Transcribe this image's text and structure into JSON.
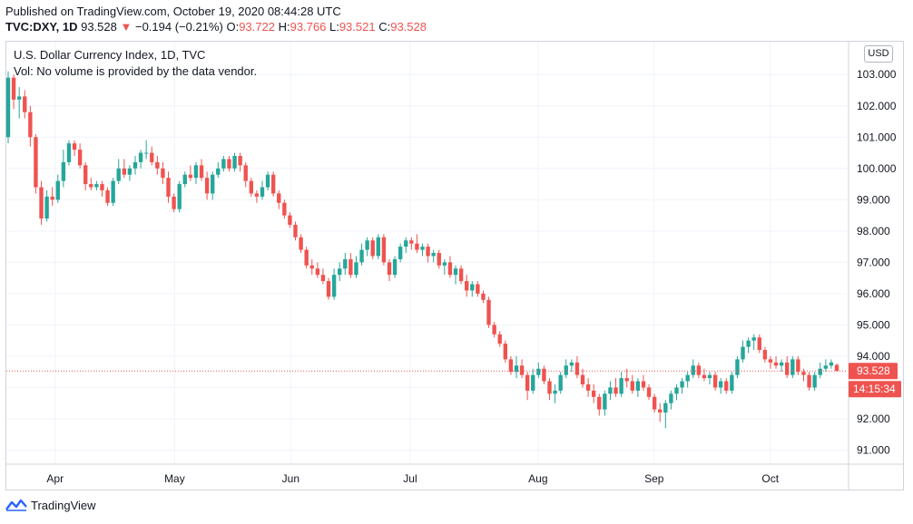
{
  "published": "Published on TradingView.com, October 19, 2020 08:44:28 UTC",
  "quote": {
    "symbol": "TVC:DXY, 1D",
    "last": "93.528",
    "arrow": "▼",
    "change": "−0.194 (−0.21%)",
    "o_label": "O:",
    "o": "93.722",
    "h_label": "H:",
    "h": "93.766",
    "l_label": "L:",
    "l": "93.521",
    "c_label": "C:",
    "c": "93.528"
  },
  "legend": {
    "title": "U.S. Dollar Currency Index, 1D, TVC",
    "vol": "Vol: No volume is provided by the data vendor."
  },
  "currency_button": "USD",
  "footer": {
    "brand": "TradingView",
    "logo_icon": "tradingview-logo-icon"
  },
  "colors": {
    "up": "#26a69a",
    "down": "#ef5350",
    "grid": "#f0f3fa",
    "text": "#131722"
  },
  "chart_data": {
    "type": "candlestick",
    "y_ticks": [
      "91.000",
      "92.000",
      "93.000",
      "94.000",
      "95.000",
      "96.000",
      "97.000",
      "98.000",
      "99.000",
      "100.000",
      "101.000",
      "102.000",
      "103.000"
    ],
    "ylim": [
      90.55,
      104.05
    ],
    "x_ticks": [
      "Apr",
      "May",
      "Jun",
      "Jul",
      "Aug",
      "Sep",
      "Oct"
    ],
    "last_price_label": "93.528",
    "countdown_label": "14:15:34",
    "last_price": 93.528,
    "candles": [
      {
        "o": 101.0,
        "h": 103.1,
        "l": 100.8,
        "c": 102.9
      },
      {
        "o": 102.9,
        "h": 103.0,
        "l": 101.9,
        "c": 102.2
      },
      {
        "o": 102.2,
        "h": 102.6,
        "l": 101.6,
        "c": 102.3
      },
      {
        "o": 102.3,
        "h": 102.5,
        "l": 101.6,
        "c": 101.8
      },
      {
        "o": 101.8,
        "h": 102.0,
        "l": 100.7,
        "c": 101.0
      },
      {
        "o": 101.0,
        "h": 101.1,
        "l": 99.2,
        "c": 99.4
      },
      {
        "o": 99.4,
        "h": 99.6,
        "l": 98.2,
        "c": 98.4
      },
      {
        "o": 98.4,
        "h": 99.3,
        "l": 98.3,
        "c": 99.1
      },
      {
        "o": 99.1,
        "h": 99.4,
        "l": 98.8,
        "c": 99.0
      },
      {
        "o": 99.0,
        "h": 99.8,
        "l": 98.9,
        "c": 99.6
      },
      {
        "o": 99.6,
        "h": 100.6,
        "l": 99.4,
        "c": 100.2
      },
      {
        "o": 100.2,
        "h": 100.9,
        "l": 100.1,
        "c": 100.8
      },
      {
        "o": 100.8,
        "h": 100.9,
        "l": 100.4,
        "c": 100.6
      },
      {
        "o": 100.6,
        "h": 100.8,
        "l": 100.0,
        "c": 100.1
      },
      {
        "o": 100.1,
        "h": 100.2,
        "l": 99.3,
        "c": 99.5
      },
      {
        "o": 99.5,
        "h": 99.7,
        "l": 99.3,
        "c": 99.4
      },
      {
        "o": 99.4,
        "h": 99.6,
        "l": 99.3,
        "c": 99.5
      },
      {
        "o": 99.5,
        "h": 99.6,
        "l": 99.1,
        "c": 99.3
      },
      {
        "o": 99.3,
        "h": 99.4,
        "l": 98.8,
        "c": 98.9
      },
      {
        "o": 98.9,
        "h": 99.7,
        "l": 98.8,
        "c": 99.6
      },
      {
        "o": 99.6,
        "h": 100.3,
        "l": 99.5,
        "c": 100.0
      },
      {
        "o": 100.0,
        "h": 100.3,
        "l": 99.7,
        "c": 99.8
      },
      {
        "o": 99.8,
        "h": 100.1,
        "l": 99.6,
        "c": 100.0
      },
      {
        "o": 100.0,
        "h": 100.4,
        "l": 99.8,
        "c": 100.2
      },
      {
        "o": 100.2,
        "h": 100.6,
        "l": 100.0,
        "c": 100.5
      },
      {
        "o": 100.5,
        "h": 100.9,
        "l": 100.3,
        "c": 100.5
      },
      {
        "o": 100.5,
        "h": 100.7,
        "l": 100.1,
        "c": 100.2
      },
      {
        "o": 100.2,
        "h": 100.4,
        "l": 99.8,
        "c": 100.0
      },
      {
        "o": 100.0,
        "h": 100.2,
        "l": 99.5,
        "c": 99.7
      },
      {
        "o": 99.7,
        "h": 99.9,
        "l": 98.9,
        "c": 99.1
      },
      {
        "o": 99.1,
        "h": 99.2,
        "l": 98.6,
        "c": 98.7
      },
      {
        "o": 98.7,
        "h": 99.6,
        "l": 98.6,
        "c": 99.5
      },
      {
        "o": 99.5,
        "h": 99.9,
        "l": 99.4,
        "c": 99.8
      },
      {
        "o": 99.8,
        "h": 100.1,
        "l": 99.6,
        "c": 99.7
      },
      {
        "o": 99.7,
        "h": 100.2,
        "l": 99.5,
        "c": 100.1
      },
      {
        "o": 100.1,
        "h": 100.3,
        "l": 99.6,
        "c": 99.7
      },
      {
        "o": 99.7,
        "h": 99.9,
        "l": 99.0,
        "c": 99.2
      },
      {
        "o": 99.2,
        "h": 99.9,
        "l": 99.0,
        "c": 99.8
      },
      {
        "o": 99.8,
        "h": 100.2,
        "l": 99.7,
        "c": 100.0
      },
      {
        "o": 100.0,
        "h": 100.4,
        "l": 99.9,
        "c": 100.3
      },
      {
        "o": 100.3,
        "h": 100.4,
        "l": 99.9,
        "c": 100.0
      },
      {
        "o": 100.0,
        "h": 100.5,
        "l": 99.9,
        "c": 100.4
      },
      {
        "o": 100.4,
        "h": 100.5,
        "l": 99.9,
        "c": 100.1
      },
      {
        "o": 100.1,
        "h": 100.2,
        "l": 99.4,
        "c": 99.6
      },
      {
        "o": 99.6,
        "h": 99.7,
        "l": 99.1,
        "c": 99.2
      },
      {
        "o": 99.2,
        "h": 99.3,
        "l": 98.9,
        "c": 99.1
      },
      {
        "o": 99.1,
        "h": 99.6,
        "l": 99.0,
        "c": 99.4
      },
      {
        "o": 99.4,
        "h": 99.9,
        "l": 99.3,
        "c": 99.8
      },
      {
        "o": 99.8,
        "h": 99.9,
        "l": 99.1,
        "c": 99.2
      },
      {
        "o": 99.2,
        "h": 99.3,
        "l": 98.7,
        "c": 98.9
      },
      {
        "o": 98.9,
        "h": 99.0,
        "l": 98.4,
        "c": 98.5
      },
      {
        "o": 98.5,
        "h": 98.6,
        "l": 98.1,
        "c": 98.2
      },
      {
        "o": 98.2,
        "h": 98.3,
        "l": 97.7,
        "c": 97.8
      },
      {
        "o": 97.8,
        "h": 97.9,
        "l": 97.3,
        "c": 97.4
      },
      {
        "o": 97.4,
        "h": 97.5,
        "l": 96.8,
        "c": 96.9
      },
      {
        "o": 96.9,
        "h": 97.1,
        "l": 96.6,
        "c": 96.8
      },
      {
        "o": 96.8,
        "h": 97.0,
        "l": 96.5,
        "c": 96.6
      },
      {
        "o": 96.6,
        "h": 96.8,
        "l": 96.3,
        "c": 96.4
      },
      {
        "o": 96.4,
        "h": 96.5,
        "l": 95.8,
        "c": 95.9
      },
      {
        "o": 95.9,
        "h": 96.8,
        "l": 95.8,
        "c": 96.6
      },
      {
        "o": 96.6,
        "h": 97.0,
        "l": 96.4,
        "c": 96.8
      },
      {
        "o": 96.8,
        "h": 97.3,
        "l": 96.6,
        "c": 97.1
      },
      {
        "o": 97.1,
        "h": 97.3,
        "l": 96.5,
        "c": 96.6
      },
      {
        "o": 96.6,
        "h": 97.2,
        "l": 96.5,
        "c": 97.0
      },
      {
        "o": 97.0,
        "h": 97.6,
        "l": 96.9,
        "c": 97.4
      },
      {
        "o": 97.4,
        "h": 97.8,
        "l": 97.2,
        "c": 97.7
      },
      {
        "o": 97.7,
        "h": 97.8,
        "l": 97.1,
        "c": 97.2
      },
      {
        "o": 97.2,
        "h": 97.9,
        "l": 97.1,
        "c": 97.8
      },
      {
        "o": 97.8,
        "h": 97.9,
        "l": 96.9,
        "c": 97.0
      },
      {
        "o": 97.0,
        "h": 97.1,
        "l": 96.4,
        "c": 96.6
      },
      {
        "o": 96.6,
        "h": 97.2,
        "l": 96.5,
        "c": 97.1
      },
      {
        "o": 97.1,
        "h": 97.6,
        "l": 97.0,
        "c": 97.5
      },
      {
        "o": 97.5,
        "h": 97.8,
        "l": 97.3,
        "c": 97.7
      },
      {
        "o": 97.7,
        "h": 97.8,
        "l": 97.4,
        "c": 97.6
      },
      {
        "o": 97.6,
        "h": 97.9,
        "l": 97.3,
        "c": 97.4
      },
      {
        "o": 97.4,
        "h": 97.6,
        "l": 97.2,
        "c": 97.5
      },
      {
        "o": 97.5,
        "h": 97.6,
        "l": 97.0,
        "c": 97.2
      },
      {
        "o": 97.2,
        "h": 97.4,
        "l": 97.0,
        "c": 97.3
      },
      {
        "o": 97.3,
        "h": 97.4,
        "l": 96.8,
        "c": 96.9
      },
      {
        "o": 96.9,
        "h": 97.1,
        "l": 96.6,
        "c": 97.0
      },
      {
        "o": 97.0,
        "h": 97.2,
        "l": 96.5,
        "c": 96.6
      },
      {
        "o": 96.6,
        "h": 96.9,
        "l": 96.3,
        "c": 96.8
      },
      {
        "o": 96.8,
        "h": 96.9,
        "l": 96.3,
        "c": 96.4
      },
      {
        "o": 96.4,
        "h": 96.6,
        "l": 95.9,
        "c": 96.1
      },
      {
        "o": 96.1,
        "h": 96.4,
        "l": 95.9,
        "c": 96.3
      },
      {
        "o": 96.3,
        "h": 96.4,
        "l": 95.9,
        "c": 96.0
      },
      {
        "o": 96.0,
        "h": 96.1,
        "l": 95.7,
        "c": 95.8
      },
      {
        "o": 95.8,
        "h": 95.9,
        "l": 94.9,
        "c": 95.0
      },
      {
        "o": 95.0,
        "h": 95.1,
        "l": 94.6,
        "c": 94.7
      },
      {
        "o": 94.7,
        "h": 94.8,
        "l": 94.3,
        "c": 94.4
      },
      {
        "o": 94.4,
        "h": 94.5,
        "l": 93.8,
        "c": 93.9
      },
      {
        "o": 93.9,
        "h": 94.0,
        "l": 93.4,
        "c": 93.5
      },
      {
        "o": 93.5,
        "h": 94.0,
        "l": 93.3,
        "c": 93.7
      },
      {
        "o": 93.7,
        "h": 93.9,
        "l": 93.3,
        "c": 93.4
      },
      {
        "o": 93.4,
        "h": 93.5,
        "l": 92.6,
        "c": 92.9
      },
      {
        "o": 92.9,
        "h": 93.6,
        "l": 92.8,
        "c": 93.4
      },
      {
        "o": 93.4,
        "h": 93.8,
        "l": 93.3,
        "c": 93.6
      },
      {
        "o": 93.6,
        "h": 93.7,
        "l": 93.1,
        "c": 93.2
      },
      {
        "o": 93.2,
        "h": 93.3,
        "l": 92.6,
        "c": 92.8
      },
      {
        "o": 92.8,
        "h": 93.1,
        "l": 92.5,
        "c": 92.9
      },
      {
        "o": 92.9,
        "h": 93.5,
        "l": 92.8,
        "c": 93.4
      },
      {
        "o": 93.4,
        "h": 93.9,
        "l": 93.3,
        "c": 93.7
      },
      {
        "o": 93.7,
        "h": 93.9,
        "l": 93.5,
        "c": 93.8
      },
      {
        "o": 93.8,
        "h": 94.0,
        "l": 93.3,
        "c": 93.4
      },
      {
        "o": 93.4,
        "h": 93.6,
        "l": 93.0,
        "c": 93.1
      },
      {
        "o": 93.1,
        "h": 93.3,
        "l": 92.7,
        "c": 92.9
      },
      {
        "o": 92.9,
        "h": 93.1,
        "l": 92.5,
        "c": 92.7
      },
      {
        "o": 92.7,
        "h": 92.8,
        "l": 92.1,
        "c": 92.3
      },
      {
        "o": 92.3,
        "h": 92.9,
        "l": 92.1,
        "c": 92.8
      },
      {
        "o": 92.8,
        "h": 93.2,
        "l": 92.6,
        "c": 93.0
      },
      {
        "o": 93.0,
        "h": 93.3,
        "l": 92.7,
        "c": 92.8
      },
      {
        "o": 92.8,
        "h": 93.5,
        "l": 92.7,
        "c": 93.3
      },
      {
        "o": 93.3,
        "h": 93.6,
        "l": 93.0,
        "c": 93.2
      },
      {
        "o": 93.2,
        "h": 93.4,
        "l": 92.8,
        "c": 92.9
      },
      {
        "o": 92.9,
        "h": 93.3,
        "l": 92.7,
        "c": 93.2
      },
      {
        "o": 93.2,
        "h": 93.4,
        "l": 92.9,
        "c": 93.0
      },
      {
        "o": 93.0,
        "h": 93.1,
        "l": 92.6,
        "c": 92.7
      },
      {
        "o": 92.7,
        "h": 92.8,
        "l": 92.2,
        "c": 92.3
      },
      {
        "o": 92.3,
        "h": 92.5,
        "l": 91.9,
        "c": 92.2
      },
      {
        "o": 92.2,
        "h": 92.6,
        "l": 91.7,
        "c": 92.5
      },
      {
        "o": 92.5,
        "h": 92.9,
        "l": 92.3,
        "c": 92.8
      },
      {
        "o": 92.8,
        "h": 93.1,
        "l": 92.6,
        "c": 93.0
      },
      {
        "o": 93.0,
        "h": 93.3,
        "l": 92.8,
        "c": 93.2
      },
      {
        "o": 93.2,
        "h": 93.5,
        "l": 93.0,
        "c": 93.4
      },
      {
        "o": 93.4,
        "h": 93.9,
        "l": 93.3,
        "c": 93.7
      },
      {
        "o": 93.7,
        "h": 93.8,
        "l": 93.3,
        "c": 93.4
      },
      {
        "o": 93.4,
        "h": 93.6,
        "l": 93.2,
        "c": 93.3
      },
      {
        "o": 93.3,
        "h": 93.5,
        "l": 93.1,
        "c": 93.4
      },
      {
        "o": 93.4,
        "h": 93.5,
        "l": 92.9,
        "c": 93.0
      },
      {
        "o": 93.0,
        "h": 93.3,
        "l": 92.8,
        "c": 93.2
      },
      {
        "o": 93.2,
        "h": 93.3,
        "l": 92.8,
        "c": 92.9
      },
      {
        "o": 92.9,
        "h": 93.5,
        "l": 92.8,
        "c": 93.4
      },
      {
        "o": 93.4,
        "h": 94.0,
        "l": 93.3,
        "c": 93.9
      },
      {
        "o": 93.9,
        "h": 94.5,
        "l": 93.8,
        "c": 94.3
      },
      {
        "o": 94.3,
        "h": 94.6,
        "l": 94.1,
        "c": 94.5
      },
      {
        "o": 94.5,
        "h": 94.7,
        "l": 94.2,
        "c": 94.6
      },
      {
        "o": 94.6,
        "h": 94.7,
        "l": 94.1,
        "c": 94.2
      },
      {
        "o": 94.2,
        "h": 94.3,
        "l": 93.8,
        "c": 93.9
      },
      {
        "o": 93.9,
        "h": 94.0,
        "l": 93.6,
        "c": 93.8
      },
      {
        "o": 93.8,
        "h": 94.0,
        "l": 93.6,
        "c": 93.7
      },
      {
        "o": 93.7,
        "h": 93.9,
        "l": 93.5,
        "c": 93.8
      },
      {
        "o": 93.8,
        "h": 94.0,
        "l": 93.3,
        "c": 93.4
      },
      {
        "o": 93.4,
        "h": 94.0,
        "l": 93.3,
        "c": 93.9
      },
      {
        "o": 93.9,
        "h": 94.0,
        "l": 93.4,
        "c": 93.5
      },
      {
        "o": 93.5,
        "h": 93.6,
        "l": 93.2,
        "c": 93.4
      },
      {
        "o": 93.4,
        "h": 93.5,
        "l": 92.9,
        "c": 93.0
      },
      {
        "o": 93.0,
        "h": 93.5,
        "l": 92.9,
        "c": 93.4
      },
      {
        "o": 93.4,
        "h": 93.8,
        "l": 93.3,
        "c": 93.6
      },
      {
        "o": 93.6,
        "h": 93.9,
        "l": 93.5,
        "c": 93.7
      },
      {
        "o": 93.7,
        "h": 93.9,
        "l": 93.6,
        "c": 93.8
      },
      {
        "o": 93.722,
        "h": 93.766,
        "l": 93.521,
        "c": 93.528
      }
    ]
  }
}
